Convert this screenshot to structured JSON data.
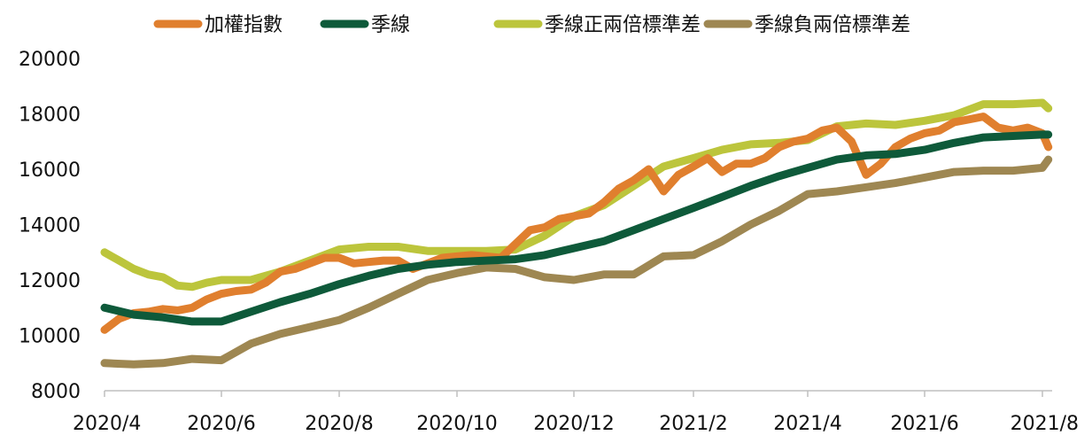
{
  "chart_data": {
    "type": "line",
    "title": "",
    "xlabel": "",
    "ylabel": "",
    "ylim": [
      8000,
      20000
    ],
    "yticks": [
      8000,
      10000,
      12000,
      14000,
      16000,
      18000,
      20000
    ],
    "xticks": [
      "2020/4",
      "2020/6",
      "2020/8",
      "2020/10",
      "2020/12",
      "2021/2",
      "2021/4",
      "2021/6",
      "2021/8"
    ],
    "x_start": "2020/4",
    "x_end": "2021/8",
    "grid": false,
    "legend_position": "top",
    "series": [
      {
        "name": "加權指數",
        "color": "#E07F2E",
        "values": [
          [
            "2020/4",
            10200
          ],
          [
            "2020/4.25",
            10600
          ],
          [
            "2020/4.5",
            10800
          ],
          [
            "2020/4.75",
            10850
          ],
          [
            "2020/5",
            10950
          ],
          [
            "2020/5.25",
            10900
          ],
          [
            "2020/5.5",
            11000
          ],
          [
            "2020/5.75",
            11300
          ],
          [
            "2020/6",
            11500
          ],
          [
            "2020/6.25",
            11600
          ],
          [
            "2020/6.5",
            11650
          ],
          [
            "2020/6.75",
            11900
          ],
          [
            "2020/7",
            12300
          ],
          [
            "2020/7.25",
            12400
          ],
          [
            "2020/7.5",
            12600
          ],
          [
            "2020/7.75",
            12800
          ],
          [
            "2020/8",
            12800
          ],
          [
            "2020/8.25",
            12600
          ],
          [
            "2020/8.5",
            12650
          ],
          [
            "2020/8.75",
            12700
          ],
          [
            "2020/9",
            12700
          ],
          [
            "2020/9.25",
            12400
          ],
          [
            "2020/9.5",
            12600
          ],
          [
            "2020/9.75",
            12800
          ],
          [
            "2020/10",
            12850
          ],
          [
            "2020/10.25",
            12900
          ],
          [
            "2020/10.5",
            12850
          ],
          [
            "2020/10.75",
            12800
          ],
          [
            "2020/11",
            13300
          ],
          [
            "2020/11.25",
            13800
          ],
          [
            "2020/11.5",
            13900
          ],
          [
            "2020/11.75",
            14200
          ],
          [
            "2020/12",
            14300
          ],
          [
            "2020/12.25",
            14400
          ],
          [
            "2020/12.5",
            14800
          ],
          [
            "2020/12.75",
            15300
          ],
          [
            "2021/1",
            15600
          ],
          [
            "2021/1.25",
            16000
          ],
          [
            "2021/1.5",
            15200
          ],
          [
            "2021/1.75",
            15800
          ],
          [
            "2021/2",
            16100
          ],
          [
            "2021/2.25",
            16400
          ],
          [
            "2021/2.5",
            15900
          ],
          [
            "2021/2.75",
            16200
          ],
          [
            "2021/3",
            16200
          ],
          [
            "2021/3.25",
            16400
          ],
          [
            "2021/3.5",
            16800
          ],
          [
            "2021/3.75",
            17000
          ],
          [
            "2021/4",
            17100
          ],
          [
            "2021/4.25",
            17400
          ],
          [
            "2021/4.5",
            17500
          ],
          [
            "2021/4.75",
            17000
          ],
          [
            "2021/5",
            15800
          ],
          [
            "2021/5.25",
            16200
          ],
          [
            "2021/5.5",
            16800
          ],
          [
            "2021/5.75",
            17100
          ],
          [
            "2021/6",
            17300
          ],
          [
            "2021/6.25",
            17400
          ],
          [
            "2021/6.5",
            17700
          ],
          [
            "2021/6.75",
            17800
          ],
          [
            "2021/7",
            17900
          ],
          [
            "2021/7.25",
            17500
          ],
          [
            "2021/7.5",
            17400
          ],
          [
            "2021/7.75",
            17500
          ],
          [
            "2021/8",
            17300
          ],
          [
            "2021/8.1",
            16800
          ]
        ]
      },
      {
        "name": "季線",
        "color": "#0E5A3A",
        "values": [
          [
            "2020/4",
            11000
          ],
          [
            "2020/4.5",
            10750
          ],
          [
            "2020/5",
            10650
          ],
          [
            "2020/5.5",
            10500
          ],
          [
            "2020/6",
            10500
          ],
          [
            "2020/6.5",
            10850
          ],
          [
            "2020/7",
            11200
          ],
          [
            "2020/7.5",
            11500
          ],
          [
            "2020/8",
            11850
          ],
          [
            "2020/8.5",
            12150
          ],
          [
            "2020/9",
            12400
          ],
          [
            "2020/9.5",
            12550
          ],
          [
            "2020/10",
            12650
          ],
          [
            "2020/10.5",
            12700
          ],
          [
            "2020/11",
            12750
          ],
          [
            "2020/11.5",
            12900
          ],
          [
            "2020/12",
            13150
          ],
          [
            "2020/12.5",
            13400
          ],
          [
            "2021/1",
            13800
          ],
          [
            "2021/1.5",
            14200
          ],
          [
            "2021/2",
            14600
          ],
          [
            "2021/2.5",
            15000
          ],
          [
            "2021/3",
            15400
          ],
          [
            "2021/3.5",
            15750
          ],
          [
            "2021/4",
            16050
          ],
          [
            "2021/4.5",
            16350
          ],
          [
            "2021/5",
            16500
          ],
          [
            "2021/5.5",
            16550
          ],
          [
            "2021/6",
            16700
          ],
          [
            "2021/6.5",
            16950
          ],
          [
            "2021/7",
            17150
          ],
          [
            "2021/7.5",
            17200
          ],
          [
            "2021/8",
            17250
          ],
          [
            "2021/8.1",
            17250
          ]
        ]
      },
      {
        "name": "季線正兩倍標準差",
        "color": "#BCC53C",
        "values": [
          [
            "2020/4",
            13000
          ],
          [
            "2020/4.25",
            12700
          ],
          [
            "2020/4.5",
            12400
          ],
          [
            "2020/4.75",
            12200
          ],
          [
            "2020/5",
            12100
          ],
          [
            "2020/5.25",
            11800
          ],
          [
            "2020/5.5",
            11750
          ],
          [
            "2020/5.75",
            11900
          ],
          [
            "2020/6",
            12000
          ],
          [
            "2020/6.5",
            12000
          ],
          [
            "2020/7",
            12300
          ],
          [
            "2020/7.5",
            12700
          ],
          [
            "2020/8",
            13100
          ],
          [
            "2020/8.5",
            13200
          ],
          [
            "2020/9",
            13200
          ],
          [
            "2020/9.5",
            13050
          ],
          [
            "2020/10",
            13050
          ],
          [
            "2020/10.5",
            13050
          ],
          [
            "2020/11",
            13100
          ],
          [
            "2020/11.5",
            13600
          ],
          [
            "2020/12",
            14300
          ],
          [
            "2020/12.5",
            14700
          ],
          [
            "2021/1",
            15400
          ],
          [
            "2021/1.5",
            16100
          ],
          [
            "2021/2",
            16400
          ],
          [
            "2021/2.5",
            16700
          ],
          [
            "2021/3",
            16900
          ],
          [
            "2021/3.5",
            16950
          ],
          [
            "2021/4",
            17050
          ],
          [
            "2021/4.5",
            17550
          ],
          [
            "2021/5",
            17650
          ],
          [
            "2021/5.5",
            17600
          ],
          [
            "2021/6",
            17750
          ],
          [
            "2021/6.5",
            17950
          ],
          [
            "2021/7",
            18350
          ],
          [
            "2021/7.5",
            18350
          ],
          [
            "2021/8",
            18400
          ],
          [
            "2021/8.1",
            18200
          ]
        ]
      },
      {
        "name": "季線負兩倍標準差",
        "color": "#9E8752",
        "values": [
          [
            "2020/4",
            9000
          ],
          [
            "2020/4.5",
            8950
          ],
          [
            "2020/5",
            9000
          ],
          [
            "2020/5.5",
            9150
          ],
          [
            "2020/6",
            9100
          ],
          [
            "2020/6.5",
            9700
          ],
          [
            "2020/7",
            10050
          ],
          [
            "2020/7.5",
            10300
          ],
          [
            "2020/8",
            10550
          ],
          [
            "2020/8.5",
            11000
          ],
          [
            "2020/9",
            11500
          ],
          [
            "2020/9.5",
            12000
          ],
          [
            "2020/10",
            12250
          ],
          [
            "2020/10.5",
            12450
          ],
          [
            "2020/11",
            12400
          ],
          [
            "2020/11.5",
            12100
          ],
          [
            "2020/12",
            12000
          ],
          [
            "2020/12.5",
            12200
          ],
          [
            "2021/1",
            12200
          ],
          [
            "2021/1.5",
            12850
          ],
          [
            "2021/2",
            12900
          ],
          [
            "2021/2.5",
            13400
          ],
          [
            "2021/3",
            14000
          ],
          [
            "2021/3.5",
            14500
          ],
          [
            "2021/4",
            15100
          ],
          [
            "2021/4.5",
            15200
          ],
          [
            "2021/5",
            15350
          ],
          [
            "2021/5.5",
            15500
          ],
          [
            "2021/6",
            15700
          ],
          [
            "2021/6.5",
            15900
          ],
          [
            "2021/7",
            15950
          ],
          [
            "2021/7.5",
            15950
          ],
          [
            "2021/8",
            16050
          ],
          [
            "2021/8.1",
            16350
          ]
        ]
      }
    ]
  }
}
